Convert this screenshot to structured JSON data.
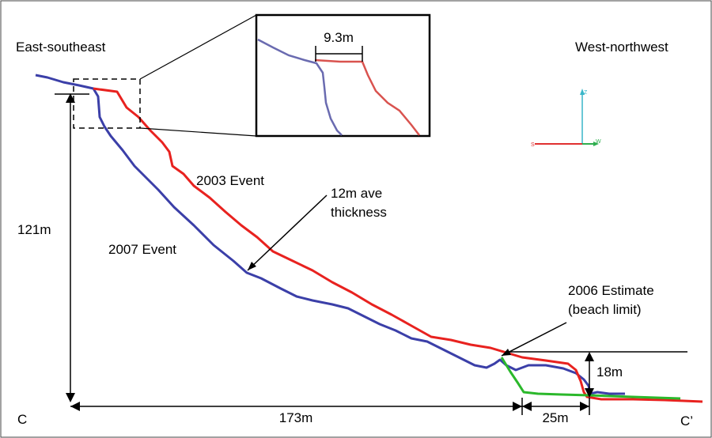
{
  "labels": {
    "east": "East-southeast",
    "west": "West-northwest",
    "inset": "9.3m",
    "event2003": "2003 Event",
    "event2007": "2007 Event",
    "thickness_line1": "12m ave",
    "thickness_line2": "thickness",
    "estimate_line1": "2006 Estimate",
    "estimate_line2": "(beach limit)",
    "height": "121m",
    "length": "173m",
    "beach_width": "25m",
    "beach_height": "18m",
    "point_c": "C",
    "point_c_prime": "C’"
  },
  "compass": {
    "up": "Z",
    "left": "S",
    "right": "W"
  },
  "colors": {
    "profile_2003": "#e8221f",
    "profile_2007": "#3b3fa8",
    "estimate_2006": "#2bb82b",
    "inset_2003": "#d9534f",
    "inset_2007": "#6a6bb0",
    "compass_vertical": "#39b6c9",
    "compass_left": "#e03030",
    "compass_right": "#2fae4f"
  }
}
